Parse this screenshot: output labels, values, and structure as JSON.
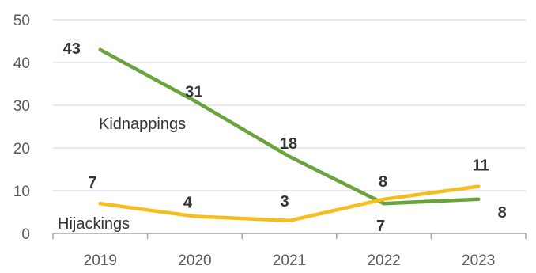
{
  "colors": {
    "kidnappings": "#6aa33b",
    "hijackings": "#f5bd1f",
    "grid": "#d9d9d9",
    "axis": "#a6a6a6"
  },
  "chart_data": {
    "type": "line",
    "categories": [
      "2019",
      "2020",
      "2021",
      "2022",
      "2023"
    ],
    "ylim": [
      0,
      50
    ],
    "yticks": [
      0,
      10,
      20,
      30,
      40,
      50
    ],
    "grid": true,
    "legend": "none",
    "title": "",
    "xlabel": "",
    "ylabel": "",
    "series": [
      {
        "name": "Kidnappings",
        "values": [
          43,
          31,
          18,
          7,
          8
        ]
      },
      {
        "name": "Hijackings",
        "values": [
          7,
          4,
          3,
          8,
          11
        ]
      }
    ]
  }
}
